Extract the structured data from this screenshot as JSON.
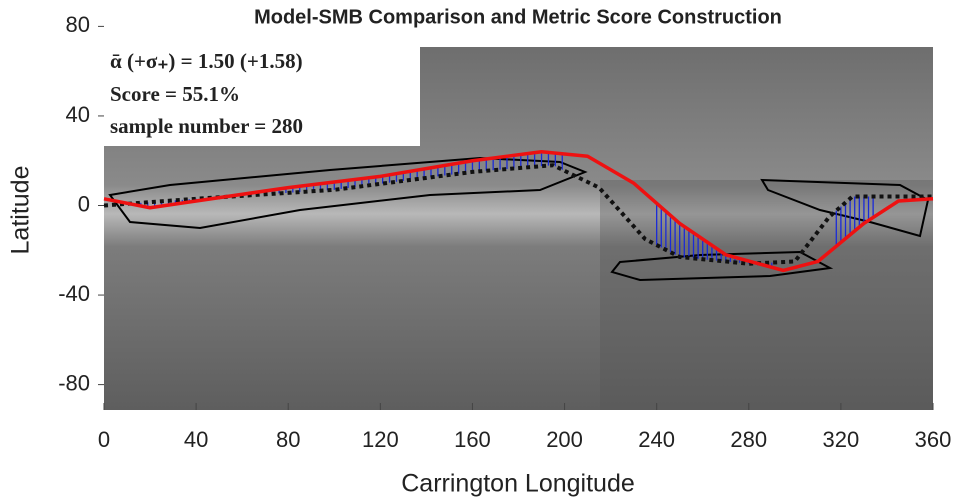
{
  "chart_data": {
    "type": "line",
    "title": "Model-SMB Comparison and Metric Score Construction",
    "xlabel": "Carrington Longitude",
    "ylabel": "Latitude",
    "annotations": [
      "ᾱ (+σ₊) = 1.50 (+1.58)",
      "Score = 55.1%",
      "sample number = 280"
    ],
    "xlim": [
      0,
      360
    ],
    "ylim": [
      -90,
      90
    ],
    "xticks": [
      0,
      40,
      80,
      120,
      160,
      200,
      240,
      280,
      320,
      360
    ],
    "yticks": [
      -80,
      -40,
      0,
      40,
      80
    ],
    "series": [
      {
        "color": "#111111",
        "style": "dotted",
        "x": [
          0,
          40,
          100,
          160,
          195,
          215,
          235,
          250,
          280,
          300,
          315,
          325,
          360
        ],
        "values": [
          0,
          3,
          7,
          15,
          18,
          8,
          -15,
          -23,
          -26,
          -25,
          -5,
          4,
          4
        ]
      },
      {
        "color": "#ee1111",
        "style": "solid",
        "x": [
          0,
          20,
          40,
          80,
          120,
          160,
          190,
          210,
          230,
          250,
          270,
          295,
          310,
          330,
          345,
          360
        ],
        "values": [
          3,
          -1,
          2,
          8,
          13,
          20,
          24,
          22,
          10,
          -8,
          -22,
          -29,
          -25,
          -8,
          2,
          3
        ]
      }
    ]
  }
}
